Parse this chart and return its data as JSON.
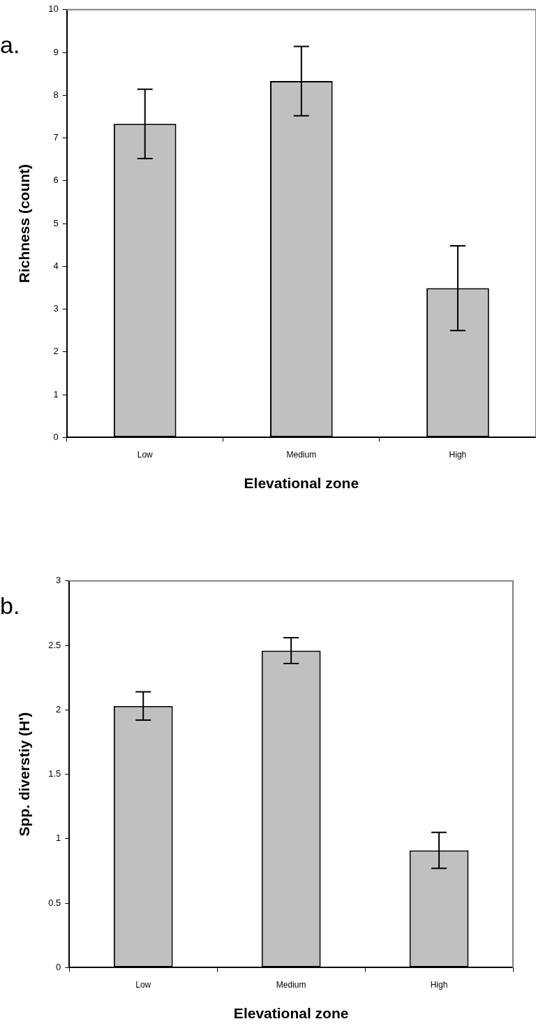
{
  "chart_data": [
    {
      "type": "bar",
      "categories": [
        "Low",
        "Medium",
        "High"
      ],
      "values": [
        7.33,
        8.33,
        3.49
      ],
      "errors": [
        0.81,
        0.81,
        0.99
      ],
      "color": "#c0c0c0",
      "ylim": [
        0,
        10
      ],
      "yticks": [
        0,
        1,
        2,
        3,
        4,
        5,
        6,
        7,
        8,
        9,
        10
      ],
      "xlabel": "Elevational zone",
      "ylabel": "Richness (count)",
      "annotations": [
        "a."
      ]
    },
    {
      "type": "bar",
      "categories": [
        "Low",
        "Medium",
        "High"
      ],
      "values": [
        2.03,
        2.46,
        0.91
      ],
      "errors": [
        0.11,
        0.1,
        0.14
      ],
      "color": "#c0c0c0",
      "ylim": [
        0,
        3
      ],
      "yticks": [
        0,
        0.5,
        1,
        1.5,
        2,
        2.5,
        3
      ],
      "xlabel": "Elevational zone",
      "ylabel": "Spp. diverstiy (H')",
      "annotations": [
        "b."
      ]
    }
  ]
}
